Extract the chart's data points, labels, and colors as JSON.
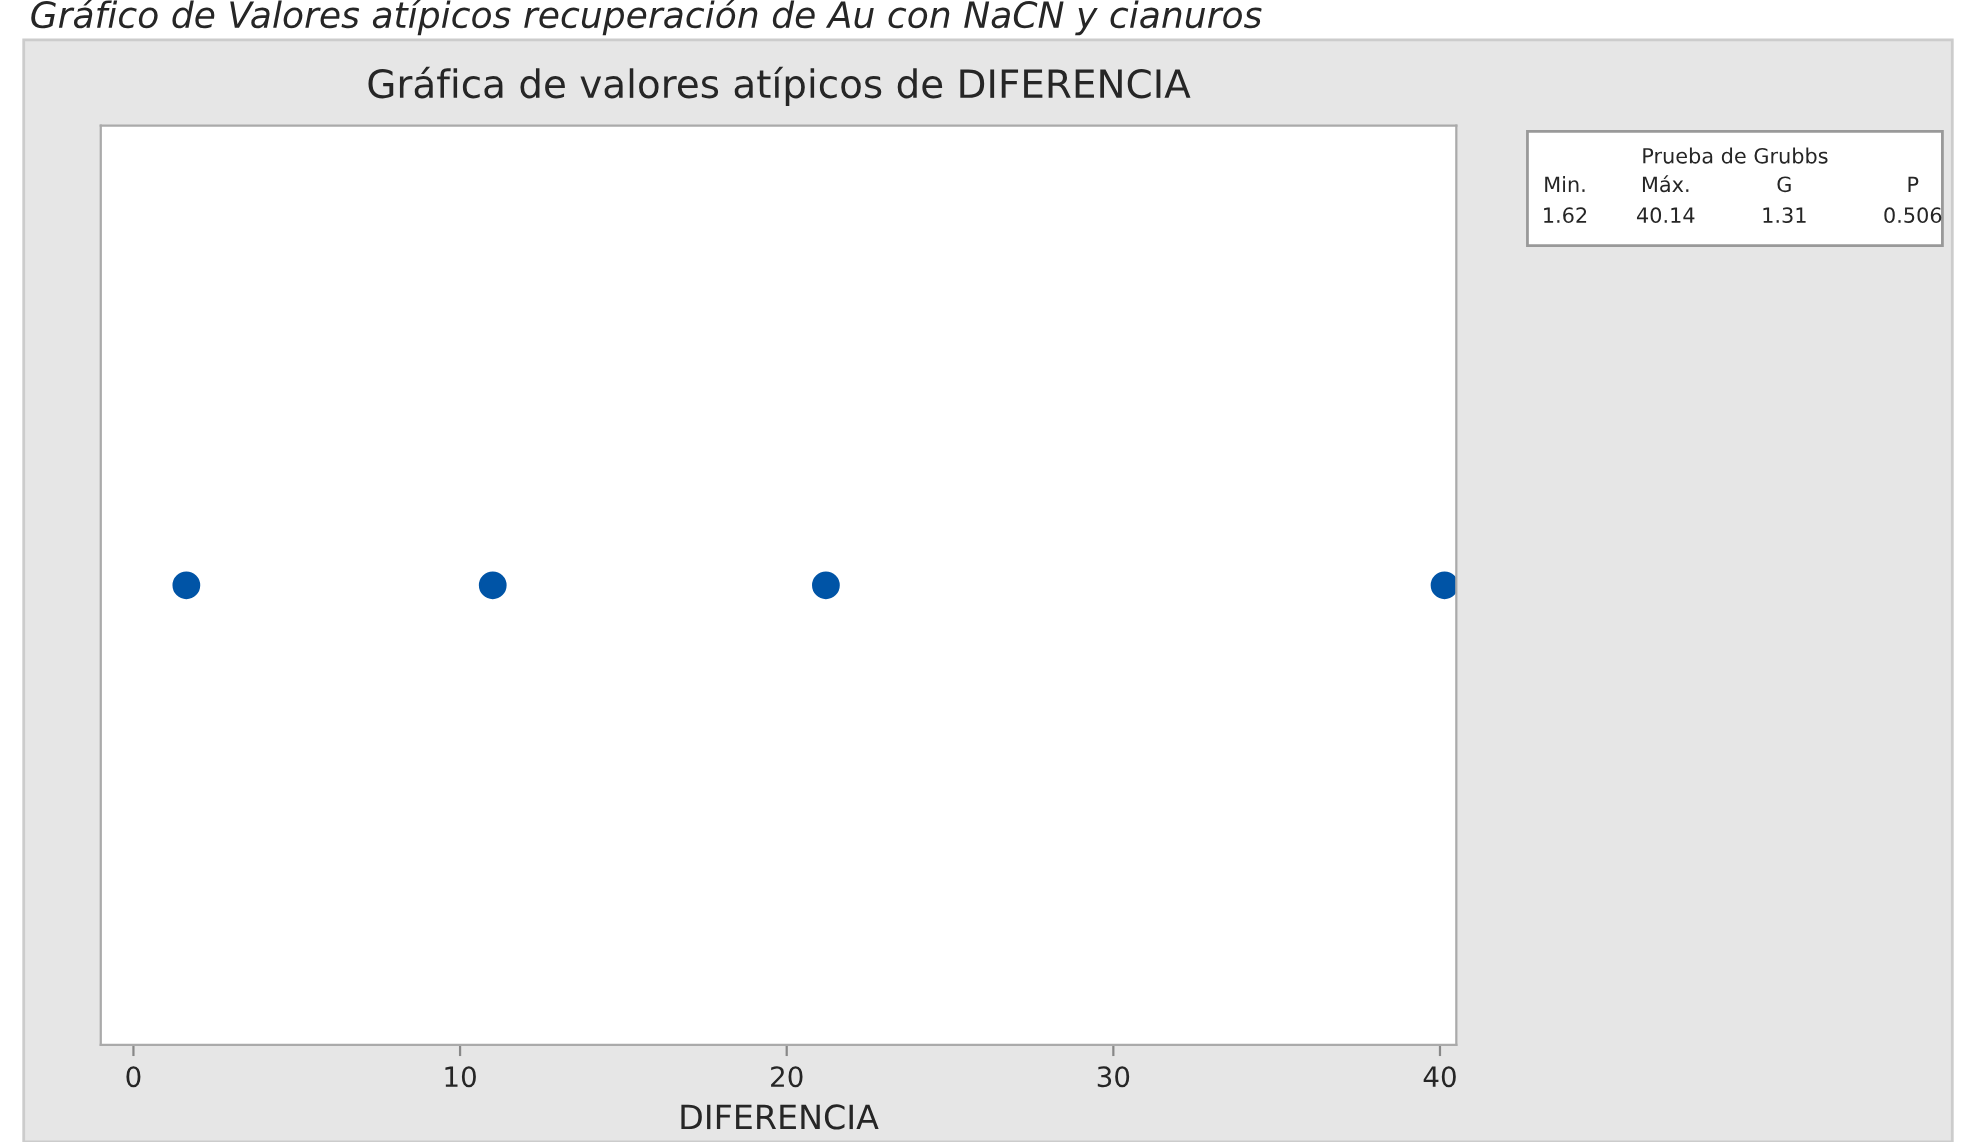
{
  "chart_data": {
    "type": "scatter",
    "orientation": "horizontal",
    "title": "Gráfica de valores atípicos de DIFERENCIA",
    "xlabel": "DIFERENCIA",
    "categories": [
      null
    ],
    "series": [
      {
        "color": "#0054a6",
        "values": [
          1.62
        ]
      },
      {
        "color": "#0054a6",
        "values": [
          11.0
        ]
      },
      {
        "color": "#0054a6",
        "values": [
          21.2
        ]
      },
      {
        "color": "#0054a6",
        "values": [
          40.14
        ]
      }
    ],
    "xlim": [
      -1,
      40.5
    ],
    "xticks": [
      0,
      10,
      20,
      30,
      40
    ],
    "grid": false,
    "marker": "circle",
    "annotations": [
      "Gráfico de Valores atípicos recuperación de Au con NaCN y cianuros",
      "Prueba de Grubbs",
      "Min.",
      "Máx.",
      "G",
      "P",
      "1.62",
      "40.14",
      "1.31",
      "0.506"
    ]
  }
}
